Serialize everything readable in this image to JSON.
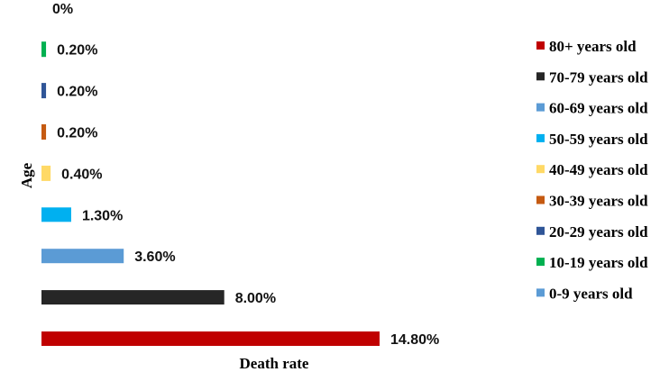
{
  "chart_data": {
    "type": "bar",
    "orientation": "horizontal",
    "xlabel": "Death rate",
    "ylabel": "Age",
    "xlim": [
      0,
      15
    ],
    "grid": false,
    "legend_position": "right",
    "categories": [
      "0-9 years old",
      "10-19 years old",
      "20-29 years old",
      "30-39 years old",
      "40-49 years old",
      "50-59 years old",
      "60-69 years old",
      "70-79 years old",
      "80+ years old"
    ],
    "values": [
      0,
      0.2,
      0.2,
      0.2,
      0.4,
      1.3,
      3.6,
      8.0,
      14.8
    ],
    "data_labels": [
      "0%",
      "0.20%",
      "0.20%",
      "0.20%",
      "0.40%",
      "1.30%",
      "3.60%",
      "8.00%",
      "14.80%"
    ],
    "colors": [
      "#5b9bd5",
      "#00b050",
      "#2f5597",
      "#c55a11",
      "#ffd966",
      "#00b0f0",
      "#5b9bd5",
      "#262626",
      "#c00000"
    ],
    "legend": [
      {
        "label": "80+ years old",
        "color": "#c00000"
      },
      {
        "label": "70-79 years old",
        "color": "#262626"
      },
      {
        "label": "60-69 years old",
        "color": "#5b9bd5"
      },
      {
        "label": "50-59 years old",
        "color": "#00b0f0"
      },
      {
        "label": "40-49 years old",
        "color": "#ffd966"
      },
      {
        "label": "30-39 years old",
        "color": "#c55a11"
      },
      {
        "label": "20-29 years old",
        "color": "#2f5597"
      },
      {
        "label": "10-19 years old",
        "color": "#00b050"
      },
      {
        "label": "0-9 years old",
        "color": "#5b9bd5"
      }
    ]
  }
}
